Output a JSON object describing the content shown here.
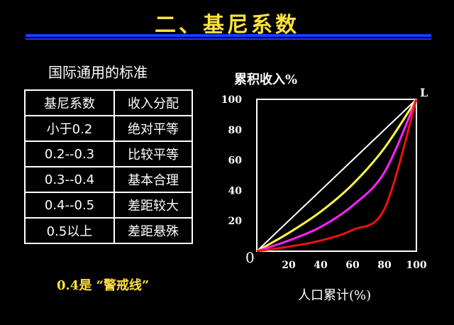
{
  "page": {
    "title": "二、基尼系数",
    "subtitle": "国际通用的标准",
    "note": "0.4是 “警戒线”"
  },
  "table": {
    "header": [
      "基尼系数",
      "收入分配"
    ],
    "rows": [
      [
        "小于0.2",
        "绝对平等"
      ],
      [
        "0.2--0.3",
        "比较平等"
      ],
      [
        "0.3--0.4",
        "基本合理"
      ],
      [
        "0.4--0.5",
        "差距较大"
      ],
      [
        "0.5以上",
        "差距悬殊"
      ]
    ]
  },
  "chart_data": {
    "type": "line",
    "ylabel": "累积收入%",
    "xlabel": "人口累计(%)",
    "origin_label": "0",
    "endpoint_label": "L",
    "xlim": [
      0,
      100
    ],
    "ylim": [
      0,
      100
    ],
    "xticks": [
      20,
      40,
      60,
      80,
      100
    ],
    "yticks": [
      20,
      40,
      60,
      80,
      100
    ],
    "grid": false,
    "series": [
      {
        "color": "#ffffff",
        "x": [
          0,
          100
        ],
        "y": [
          0,
          100
        ]
      },
      {
        "color": "#ffff44",
        "x": [
          0,
          20,
          40,
          60,
          80,
          100
        ],
        "y": [
          0,
          12,
          26,
          44,
          68,
          100
        ]
      },
      {
        "color": "#ff22ff",
        "x": [
          0,
          20,
          40,
          60,
          80,
          100
        ],
        "y": [
          0,
          7,
          16,
          30,
          52,
          100
        ]
      },
      {
        "color": "#ee1111",
        "x": [
          0,
          20,
          40,
          60,
          80,
          100
        ],
        "y": [
          0,
          3,
          7,
          14,
          28,
          100
        ]
      }
    ]
  }
}
